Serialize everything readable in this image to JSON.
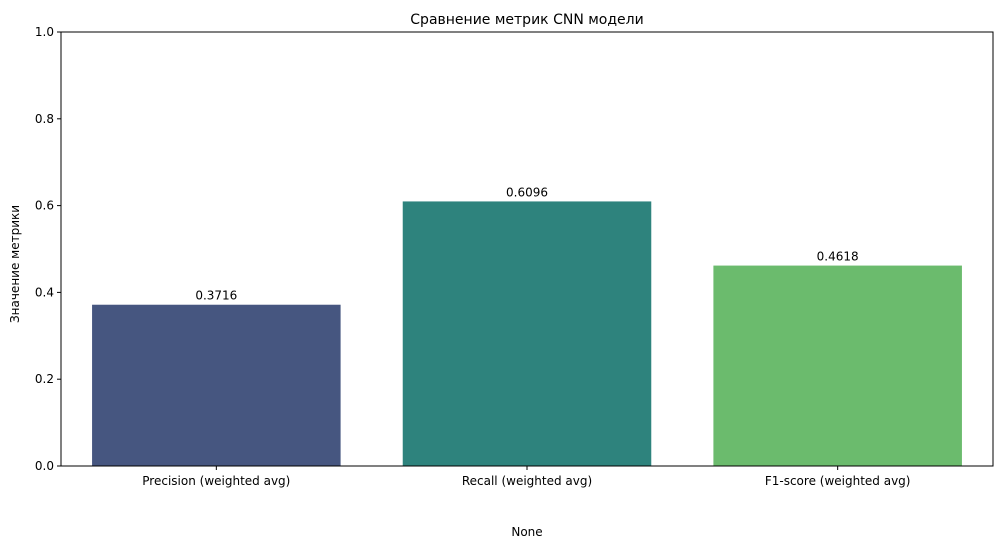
{
  "chart_data": {
    "type": "bar",
    "title": "Сравнение метрик CNN модели",
    "xlabel": "None",
    "ylabel": "Значение метрики",
    "categories": [
      "Precision (weighted avg)",
      "Recall (weighted avg)",
      "F1-score (weighted avg)"
    ],
    "values": [
      0.3716,
      0.6096,
      0.4618
    ],
    "value_labels": [
      "0.3716",
      "0.6096",
      "0.4618"
    ],
    "colors": [
      "#465680",
      "#2e837d",
      "#6bbb6d"
    ],
    "ylim": [
      0,
      1.0
    ],
    "yticks": [
      0.0,
      0.2,
      0.4,
      0.6,
      0.8,
      1.0
    ],
    "ytick_labels": [
      "0.0",
      "0.2",
      "0.4",
      "0.6",
      "0.8",
      "1.0"
    ],
    "grid": false,
    "legend": "none"
  }
}
